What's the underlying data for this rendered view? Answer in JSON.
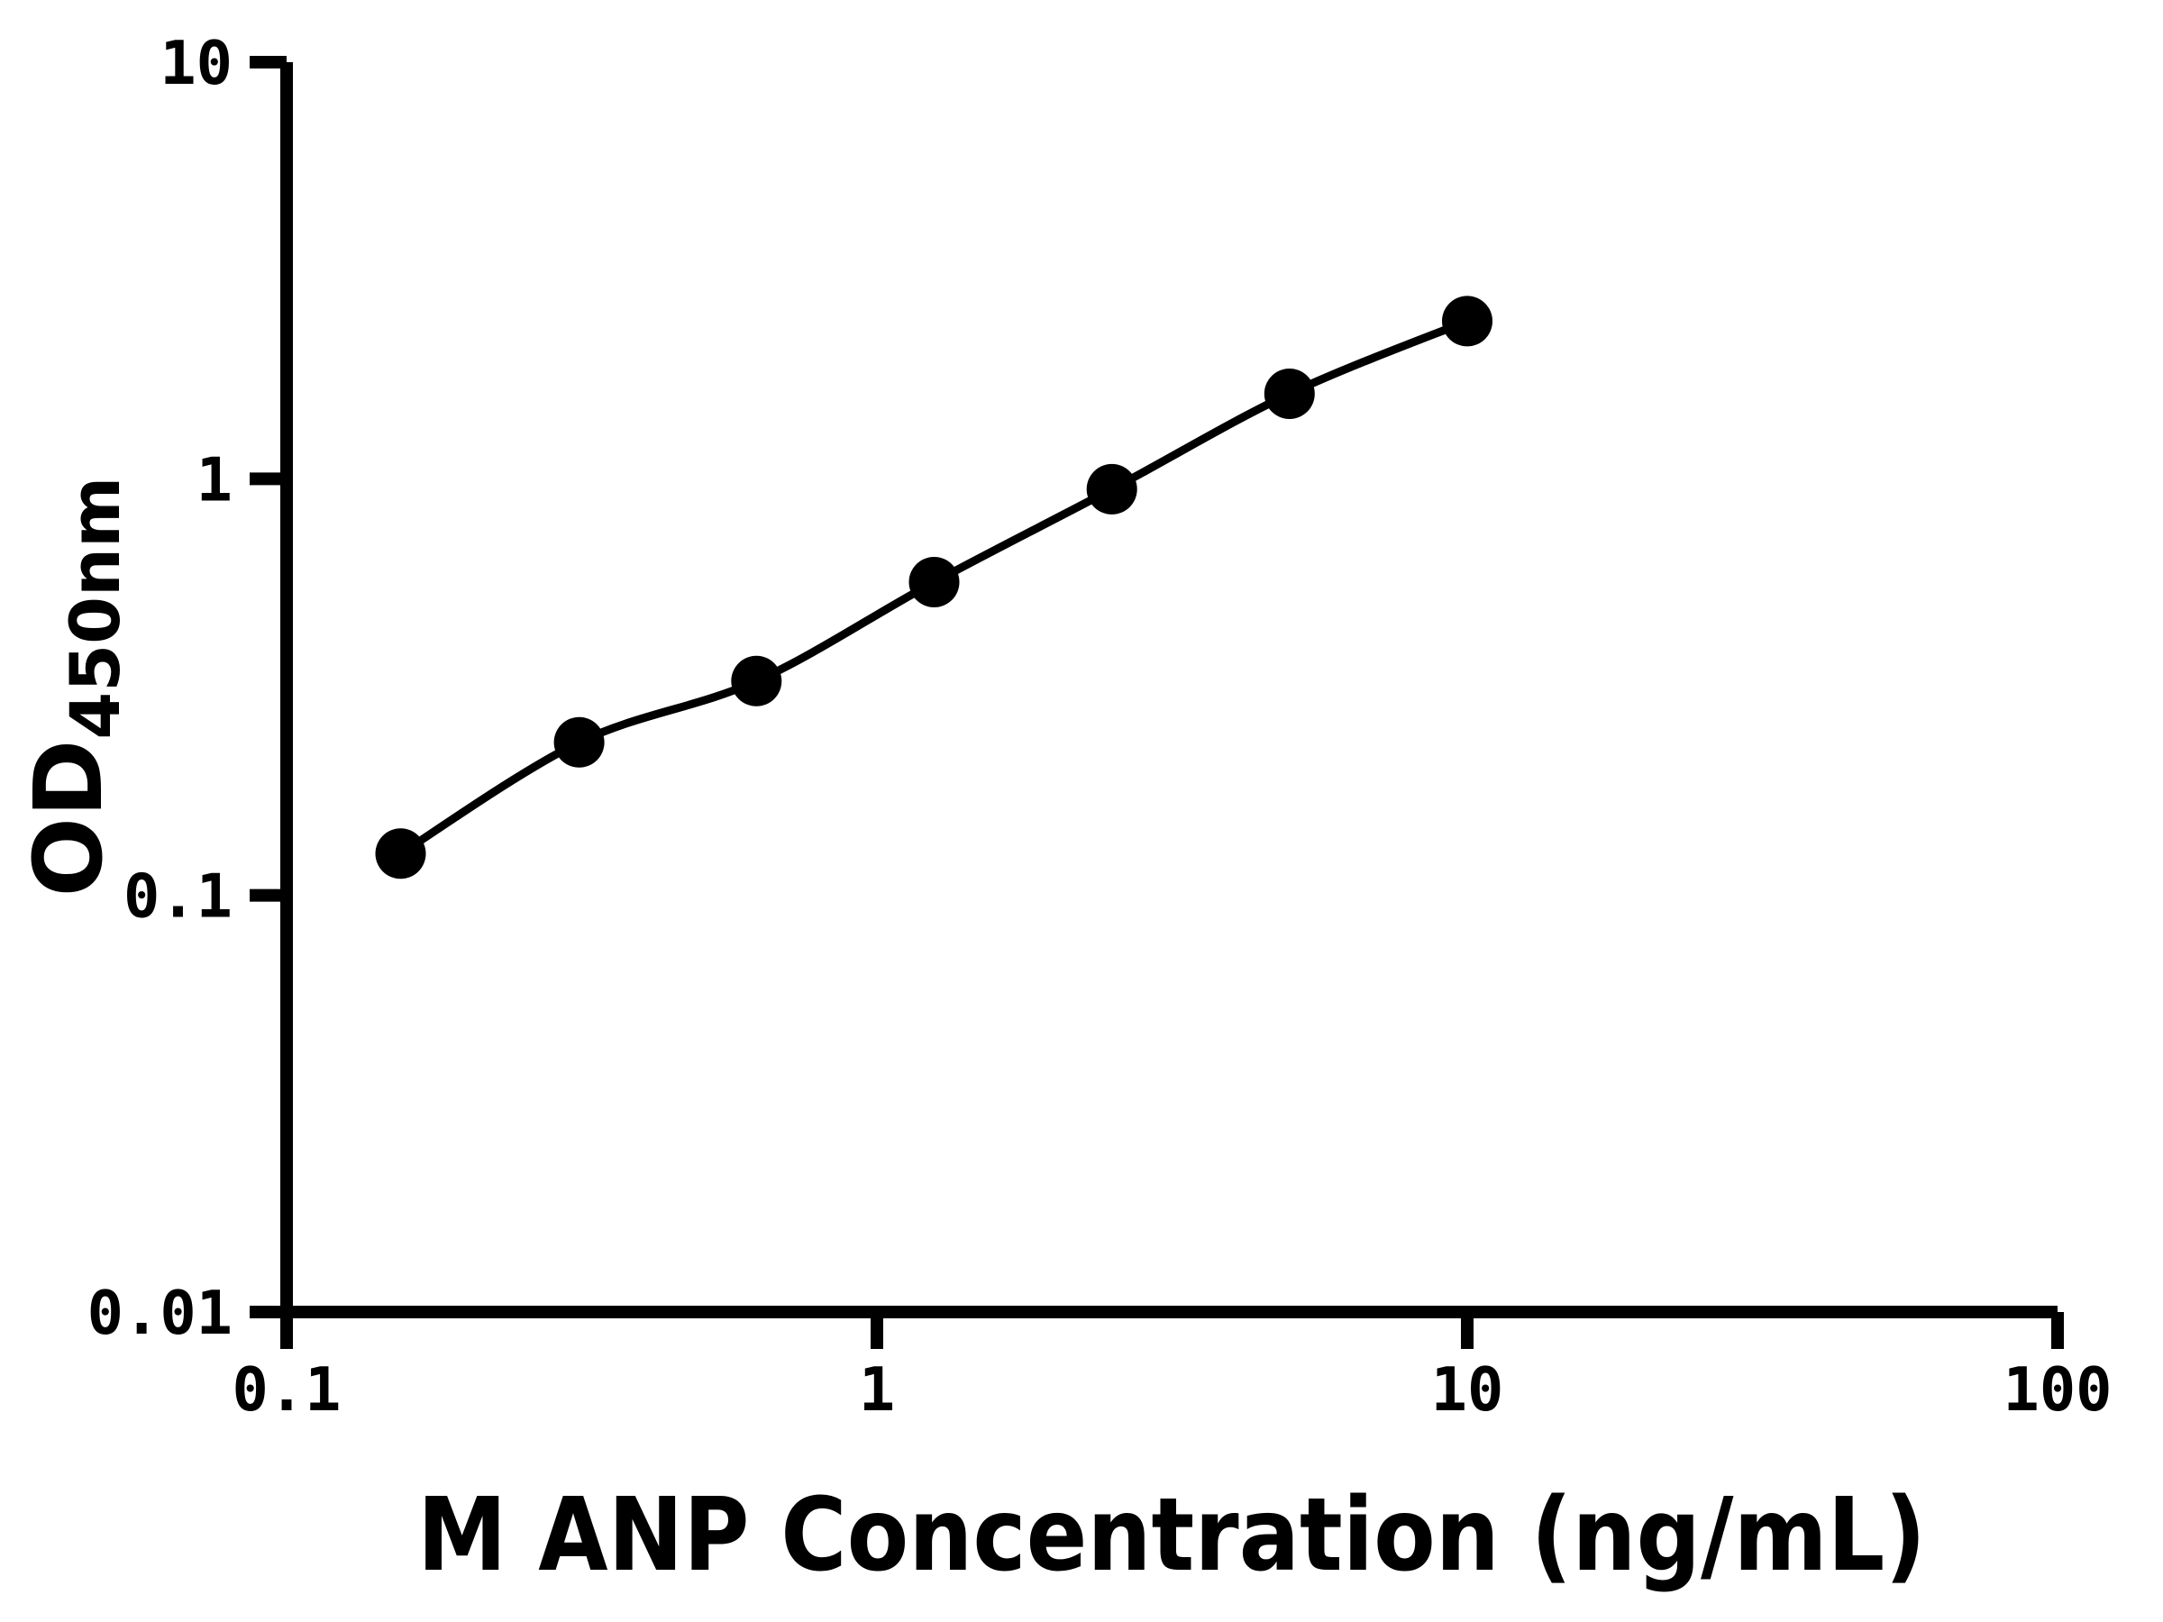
{
  "figure": {
    "background": "#ffffff"
  },
  "chart_data": {
    "type": "line",
    "title": "",
    "xlabel": "M ANP Concentration (ng/mL)",
    "ylabel": {
      "main": "OD",
      "subscript": "450nm"
    },
    "x_scale": "log",
    "y_scale": "log",
    "xlim": [
      0.1,
      100
    ],
    "ylim": [
      0.01,
      10
    ],
    "x_ticks": [
      0.1,
      1,
      10,
      100
    ],
    "x_tick_labels": [
      "0.1",
      "1",
      "10",
      "100"
    ],
    "y_ticks": [
      10,
      1,
      0.1,
      0.01
    ],
    "y_tick_labels": [
      "10",
      "1",
      "0.1",
      "0.01"
    ],
    "grid": false,
    "legend": false,
    "series": [
      {
        "x": [
          0.156,
          0.313,
          0.625,
          1.25,
          2.5,
          5,
          10
        ],
        "y": [
          0.126,
          0.233,
          0.327,
          0.565,
          0.944,
          1.6,
          2.39
        ],
        "marker": "filled-circle",
        "marker_color": "#000000",
        "line_color": "#000000"
      }
    ],
    "colors": {
      "axis": "#000000",
      "text": "#000000",
      "background": "#ffffff"
    }
  }
}
